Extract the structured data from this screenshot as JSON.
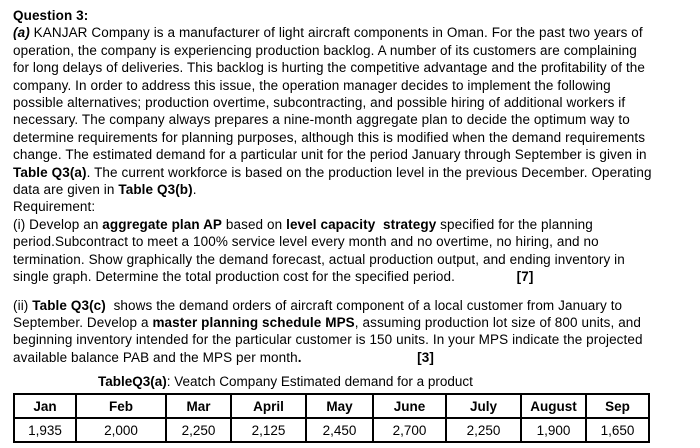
{
  "page": {
    "background": "#ffffff",
    "text_color": "#000000",
    "table_border_color": "#000000"
  },
  "question": {
    "lines": [
      {
        "seg": [
          {
            "t": "Question 3:",
            "b": 1
          }
        ]
      },
      {
        "seg": [
          {
            "t": "(a)",
            "b": 1,
            "i": 1
          },
          {
            "t": " KANJAR Company is a manufacturer of light aircraft components in Oman. For the past two years of"
          }
        ]
      },
      {
        "seg": [
          {
            "t": "operation, the company is experiencing production backlog. A number of its customers are complaining"
          }
        ]
      },
      {
        "seg": [
          {
            "t": "for long delays of deliveries. This backlog is hurting the competitive advantage and the profitability of the"
          }
        ]
      },
      {
        "seg": [
          {
            "t": "company. In order to address this issue, the operation manager decides to implement the following"
          }
        ]
      },
      {
        "seg": [
          {
            "t": "possible alternatives; production overtime, subcontracting, and possible hiring of additional workers if"
          }
        ]
      },
      {
        "seg": [
          {
            "t": "necessary. The company always prepares a nine-month aggregate plan to decide the optimum way to"
          }
        ]
      },
      {
        "seg": [
          {
            "t": "determine requirements for planning purposes, although this is modified when the demand requirements"
          }
        ]
      },
      {
        "seg": [
          {
            "t": "change. The estimated demand for a particular unit for the period January through September is given in"
          }
        ]
      },
      {
        "seg": [
          {
            "t": "Table Q3(a)",
            "b": 1
          },
          {
            "t": ". The current workforce is based on the production level in the previous December. Operating"
          }
        ]
      },
      {
        "seg": [
          {
            "t": "data are given in "
          },
          {
            "t": "Table Q3(b)",
            "b": 1
          },
          {
            "t": "."
          }
        ]
      },
      {
        "seg": [
          {
            "t": "Requirement:"
          }
        ]
      },
      {
        "seg": [
          {
            "t": "(i) Develop an "
          },
          {
            "t": "aggregate plan AP",
            "b": 1
          },
          {
            "t": " based on "
          },
          {
            "t": "level capacity  strategy",
            "b": 1
          },
          {
            "t": " specified for the planning"
          }
        ]
      },
      {
        "seg": [
          {
            "t": "period.Subcontract to meet a 100% service level every month and no overtime, no hiring, and no"
          }
        ]
      },
      {
        "seg": [
          {
            "t": "termination. Show graphically the demand forecast, actual production output, and ending inventory in"
          }
        ]
      },
      {
        "seg": [
          {
            "t": "single graph. Determine the total production cost for the specified period.                "
          },
          {
            "t": "[7]",
            "b": 1
          }
        ]
      },
      {
        "gap": 1,
        "seg": [
          {
            "t": "(ii) "
          },
          {
            "t": "Table Q3(c)",
            "b": 1
          },
          {
            "t": "  shows the demand orders of aircraft component of a local customer from January to"
          }
        ]
      },
      {
        "seg": [
          {
            "t": "September. Develop a "
          },
          {
            "t": "master planning schedule MPS",
            "b": 1
          },
          {
            "t": ", assuming production lot size of 800 units, and"
          }
        ]
      },
      {
        "seg": [
          {
            "t": "beginning inventory intended for the particular customer is 150 units. In your MPS indicate the projected"
          }
        ]
      },
      {
        "seg": [
          {
            "t": "available balance PAB and the MPS per month"
          },
          {
            "t": ".",
            "b": 1
          },
          {
            "t": "                              "
          },
          {
            "t": "[3]",
            "b": 1
          }
        ]
      }
    ]
  },
  "table": {
    "caption": {
      "label": "TableQ3(a)",
      "text": ": Veatch Company Estimated demand for a product"
    },
    "columns": [
      "Jan",
      "Feb",
      "Mar",
      "April",
      "May",
      "June",
      "July",
      "August",
      "Sep"
    ],
    "rows": [
      [
        "1,935",
        "2,000",
        "2,250",
        "2,125",
        "2,450",
        "2,700",
        "2,250",
        "1,900",
        "1,650"
      ]
    ]
  }
}
